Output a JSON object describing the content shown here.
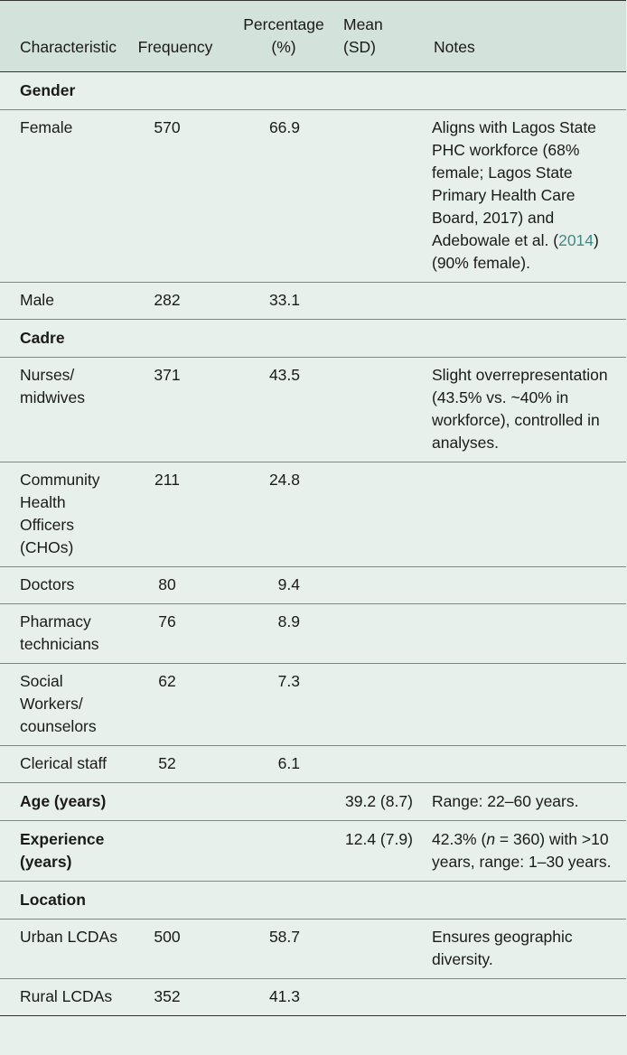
{
  "header": {
    "characteristic": "Characteristic",
    "frequency": "Frequency",
    "percentage": "Percentage\n(%)",
    "percentage_l1": "Percentage",
    "percentage_l2": "(%)",
    "mean_l1": "Mean",
    "mean_l2": "(SD)",
    "notes": "Notes"
  },
  "rows": {
    "gender": {
      "label": "Gender"
    },
    "female": {
      "label": "Female",
      "frequency": "570",
      "percentage": "66.9",
      "notes_pre": "Aligns with Lagos State PHC workforce (68% female; Lagos State Primary Health Care Board, 2017) and Adebowale et al. (",
      "notes_cite": "2014",
      "notes_post": ") (90% female)."
    },
    "male": {
      "label": "Male",
      "frequency": "282",
      "percentage": "33.1"
    },
    "cadre": {
      "label": "Cadre"
    },
    "nurses": {
      "label": "Nurses/ midwives",
      "frequency": "371",
      "percentage": "43.5",
      "notes": "Slight overrepresentation (43.5% vs. ~40% in workforce), controlled in analyses."
    },
    "cho": {
      "label": "Community Health Officers (CHOs)",
      "frequency": "211",
      "percentage": "24.8"
    },
    "doctors": {
      "label": "Doctors",
      "frequency": "80",
      "percentage": "9.4"
    },
    "pharmacy": {
      "label": "Pharmacy technicians",
      "frequency": "76",
      "percentage": "8.9"
    },
    "social": {
      "label": "Social Workers/ counselors",
      "frequency": "62",
      "percentage": "7.3"
    },
    "clerical": {
      "label": "Clerical staff",
      "frequency": "52",
      "percentage": "6.1"
    },
    "age": {
      "label": "Age (years)",
      "mean": "39.2 (8.7)",
      "notes": "Range: 22–60 years."
    },
    "experience": {
      "label": "Experience (years)",
      "mean": "12.4 (7.9)",
      "notes_pre": "42.3% (",
      "notes_var": "n",
      "notes_post": " = 360) with >10 years, range: 1–30 years."
    },
    "location": {
      "label": "Location"
    },
    "urban": {
      "label": "Urban LCDAs",
      "frequency": "500",
      "percentage": "58.7",
      "notes": "Ensures geographic diversity."
    },
    "rural": {
      "label": "Rural LCDAs",
      "frequency": "352",
      "percentage": "41.3"
    }
  },
  "colors": {
    "background": "#e8f0ec",
    "header_band": "#d3e2da",
    "citation_link": "#3f8a82"
  }
}
